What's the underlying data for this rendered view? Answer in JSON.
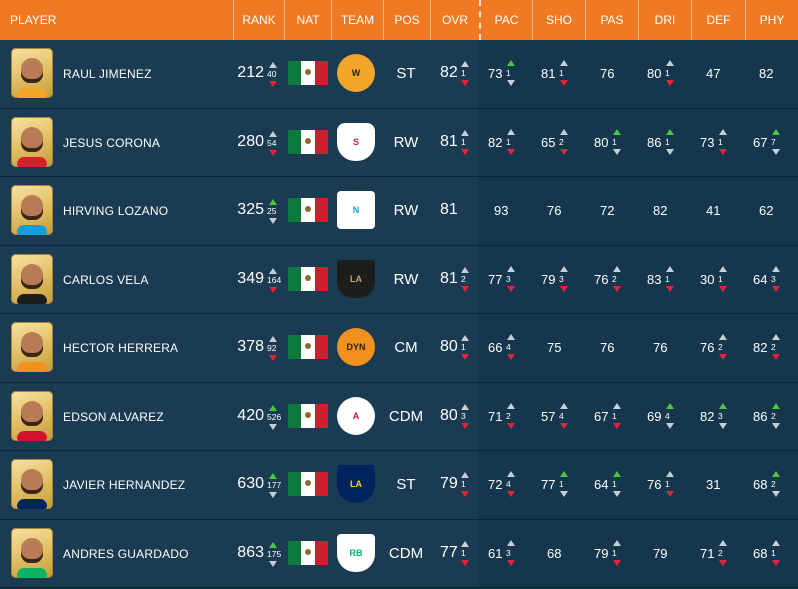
{
  "headers": {
    "player": "PLAYER",
    "rank": "RANK",
    "nat": "NAT",
    "team": "TEAM",
    "pos": "POS",
    "ovr": "OVR",
    "pac": "PAC",
    "sho": "SHO",
    "pas": "PAS",
    "dri": "DRI",
    "def": "DEF",
    "phy": "PHY"
  },
  "colors": {
    "header_bg": "#f07a23",
    "row_bg": "#1b3b52",
    "stats_bg": "#15364d",
    "up": "#48c93a",
    "down": "#e8223a"
  },
  "players": [
    {
      "name": "RAUL JIMENEZ",
      "rank": "212",
      "rank_delta": "40",
      "pos": "ST",
      "ovr": "82",
      "ovr_delta": "1",
      "team_icon": "wolves-crest-icon",
      "stats": [
        {
          "v": "73",
          "d": "1"
        },
        {
          "v": "81",
          "d": "1"
        },
        {
          "v": "76",
          "d": ""
        },
        {
          "v": "80",
          "d": "1"
        },
        {
          "v": "47",
          "d": ""
        },
        {
          "v": "82",
          "d": ""
        }
      ]
    },
    {
      "name": "JESUS CORONA",
      "rank": "280",
      "rank_delta": "54",
      "pos": "RW",
      "ovr": "81",
      "ovr_delta": "1",
      "team_icon": "sevilla-crest-icon",
      "stats": [
        {
          "v": "82",
          "d": "1"
        },
        {
          "v": "65",
          "d": "2"
        },
        {
          "v": "80",
          "d": "1"
        },
        {
          "v": "86",
          "d": "1"
        },
        {
          "v": "73",
          "d": "1"
        },
        {
          "v": "67",
          "d": "7"
        }
      ]
    },
    {
      "name": "HIRVING LOZANO",
      "rank": "325",
      "rank_delta": "25",
      "pos": "RW",
      "ovr": "81",
      "ovr_delta": "",
      "team_icon": "napoli-crest-icon",
      "stats": [
        {
          "v": "93",
          "d": ""
        },
        {
          "v": "76",
          "d": ""
        },
        {
          "v": "72",
          "d": ""
        },
        {
          "v": "82",
          "d": ""
        },
        {
          "v": "41",
          "d": ""
        },
        {
          "v": "62",
          "d": ""
        }
      ]
    },
    {
      "name": "CARLOS VELA",
      "rank": "349",
      "rank_delta": "164",
      "pos": "RW",
      "ovr": "81",
      "ovr_delta": "2",
      "team_icon": "lafc-crest-icon",
      "stats": [
        {
          "v": "77",
          "d": "3"
        },
        {
          "v": "79",
          "d": "3"
        },
        {
          "v": "76",
          "d": "2"
        },
        {
          "v": "83",
          "d": "1"
        },
        {
          "v": "30",
          "d": "1"
        },
        {
          "v": "64",
          "d": "3"
        }
      ]
    },
    {
      "name": "HECTOR HERRERA",
      "rank": "378",
      "rank_delta": "92",
      "pos": "CM",
      "ovr": "80",
      "ovr_delta": "1",
      "team_icon": "dynamo-crest-icon",
      "stats": [
        {
          "v": "66",
          "d": "4"
        },
        {
          "v": "75",
          "d": ""
        },
        {
          "v": "76",
          "d": ""
        },
        {
          "v": "76",
          "d": ""
        },
        {
          "v": "76",
          "d": "2"
        },
        {
          "v": "82",
          "d": "2"
        }
      ]
    },
    {
      "name": "EDSON ALVAREZ",
      "rank": "420",
      "rank_delta": "526",
      "pos": "CDM",
      "ovr": "80",
      "ovr_delta": "3",
      "team_icon": "ajax-crest-icon",
      "stats": [
        {
          "v": "71",
          "d": "2"
        },
        {
          "v": "57",
          "d": "4"
        },
        {
          "v": "67",
          "d": "1"
        },
        {
          "v": "69",
          "d": "4"
        },
        {
          "v": "82",
          "d": "3"
        },
        {
          "v": "86",
          "d": "2"
        }
      ]
    },
    {
      "name": "JAVIER HERNANDEZ",
      "rank": "630",
      "rank_delta": "177",
      "pos": "ST",
      "ovr": "79",
      "ovr_delta": "1",
      "team_icon": "la-galaxy-crest-icon",
      "stats": [
        {
          "v": "72",
          "d": "4"
        },
        {
          "v": "77",
          "d": "1"
        },
        {
          "v": "64",
          "d": "1"
        },
        {
          "v": "76",
          "d": "1"
        },
        {
          "v": "31",
          "d": ""
        },
        {
          "v": "68",
          "d": "2"
        }
      ]
    },
    {
      "name": "ANDRES GUARDADO",
      "rank": "863",
      "rank_delta": "175",
      "pos": "CDM",
      "ovr": "77",
      "ovr_delta": "1",
      "team_icon": "betis-crest-icon",
      "stats": [
        {
          "v": "61",
          "d": "3"
        },
        {
          "v": "68",
          "d": ""
        },
        {
          "v": "79",
          "d": "1"
        },
        {
          "v": "79",
          "d": ""
        },
        {
          "v": "71",
          "d": "2"
        },
        {
          "v": "68",
          "d": "1"
        }
      ]
    }
  ]
}
